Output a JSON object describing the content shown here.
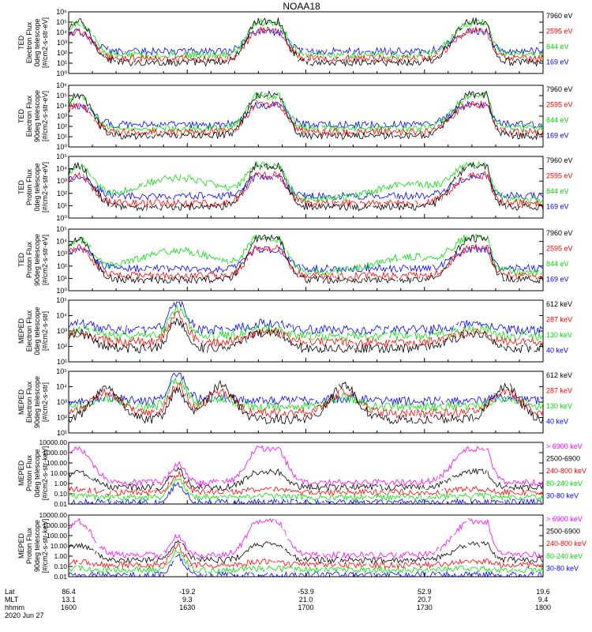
{
  "title": "NOAA18",
  "colors": {
    "black": "#000000",
    "blue": "#0000ff",
    "red": "#ff0000",
    "green": "#00e000",
    "magenta": "#ff00ff"
  },
  "chart_data": [
    {
      "type": "line",
      "panel": "ted-electron-0deg",
      "ylabel": [
        "TED",
        "Electron Flux",
        "0deg telescope",
        "[#/cm2-s-str-eV]"
      ],
      "yscale": "log",
      "ylim": [
        1,
        1000000
      ],
      "yticks": [
        "10⁰",
        "10¹",
        "10²",
        "10³",
        "10⁴",
        "10⁵",
        "10⁶"
      ],
      "legend": [
        {
          "label": "7960 eV",
          "color": "black"
        },
        {
          "label": "2595 eV",
          "color": "red"
        },
        {
          "label": "844 eV",
          "color": "green"
        },
        {
          "label": "169 eV",
          "color": "blue"
        }
      ]
    },
    {
      "type": "line",
      "panel": "ted-electron-90deg",
      "ylabel": [
        "TED",
        "Electron Flux",
        "90deg telescope",
        "[#/cm2-s-str-eV]"
      ],
      "yscale": "log",
      "ylim": [
        1,
        1000000
      ],
      "yticks": [
        "10⁰",
        "10¹",
        "10²",
        "10³",
        "10⁴",
        "10⁵",
        "10⁶"
      ],
      "legend": [
        {
          "label": "7960 eV",
          "color": "black"
        },
        {
          "label": "2595 eV",
          "color": "red"
        },
        {
          "label": "844 eV",
          "color": "green"
        },
        {
          "label": "169 eV",
          "color": "blue"
        }
      ]
    },
    {
      "type": "line",
      "panel": "ted-proton-0deg",
      "ylabel": [
        "TED",
        "Proton Flux",
        "0deg telescope",
        "[#/cm2-s-str-eV]"
      ],
      "yscale": "log",
      "ylim": [
        1,
        100000
      ],
      "yticks": [
        "10⁰",
        "10¹",
        "10²",
        "10³",
        "10⁴",
        "10⁵"
      ],
      "legend": [
        {
          "label": "7960 eV",
          "color": "black"
        },
        {
          "label": "2595 eV",
          "color": "red"
        },
        {
          "label": "844 eV",
          "color": "green"
        },
        {
          "label": "169 eV",
          "color": "blue"
        }
      ]
    },
    {
      "type": "line",
      "panel": "ted-proton-90deg",
      "ylabel": [
        "TED",
        "Proton Flux",
        "90deg telescope",
        "[#/cm2-s-str-eV]"
      ],
      "yscale": "log",
      "ylim": [
        1,
        100000
      ],
      "yticks": [
        "10⁰",
        "10¹",
        "10²",
        "10³",
        "10⁴",
        "10⁵"
      ],
      "legend": [
        {
          "label": "7960 eV",
          "color": "black"
        },
        {
          "label": "2595 eV",
          "color": "red"
        },
        {
          "label": "844 eV",
          "color": "green"
        },
        {
          "label": "169 eV",
          "color": "blue"
        }
      ]
    },
    {
      "type": "line",
      "panel": "meped-electron-0deg",
      "ylabel": [
        "MEPED",
        "Electron Flux",
        "0deg telescope",
        "[#/cm2-s-str]"
      ],
      "yscale": "log",
      "ylim": [
        10,
        100000
      ],
      "yticks": [
        "10¹",
        "10²",
        "10³",
        "10⁴",
        "10⁵"
      ],
      "legend": [
        {
          "label": "612 keV",
          "color": "black"
        },
        {
          "label": "287 keV",
          "color": "red"
        },
        {
          "label": "130 keV",
          "color": "green"
        },
        {
          "label": "40 keV",
          "color": "blue"
        }
      ]
    },
    {
      "type": "line",
      "panel": "meped-electron-90deg",
      "ylabel": [
        "MEPED",
        "Electron Flux",
        "90deg telescope",
        "[#/cm2-s-str]"
      ],
      "yscale": "log",
      "ylim": [
        10,
        100000
      ],
      "yticks": [
        "10¹",
        "10²",
        "10³",
        "10⁴",
        "10⁵"
      ],
      "legend": [
        {
          "label": "612 keV",
          "color": "black"
        },
        {
          "label": "287 keV",
          "color": "red"
        },
        {
          "label": "130 keV",
          "color": "green"
        },
        {
          "label": "40 keV",
          "color": "blue"
        }
      ]
    },
    {
      "type": "line",
      "panel": "meped-proton-0deg",
      "ylabel": [
        "MEPED",
        "Proton Flux",
        "0deg telescope",
        "[#/cm2-s-str-keV]"
      ],
      "yscale": "log",
      "ylim": [
        0.01,
        10000
      ],
      "yticks": [
        "0.01",
        "0.10",
        "1.00",
        "10.00",
        "100.00",
        "1000.00",
        "10000.00"
      ],
      "legend": [
        {
          "label": "> 6900 keV",
          "color": "magenta"
        },
        {
          "label": "2500-6900",
          "color": "black"
        },
        {
          "label": "240-800 keV",
          "color": "red"
        },
        {
          "label": "80-240 keV",
          "color": "green"
        },
        {
          "label": "30-80 keV",
          "color": "blue"
        }
      ]
    },
    {
      "type": "line",
      "panel": "meped-proton-90deg",
      "ylabel": [
        "MEPED",
        "Proton Flux",
        "90deg telescope",
        "[#/cm2-s-str-keV]"
      ],
      "yscale": "log",
      "ylim": [
        0.01,
        10000
      ],
      "yticks": [
        "0.01",
        "0.10",
        "1.00",
        "10.00",
        "100.00",
        "1000.00",
        "10000.00"
      ],
      "legend": [
        {
          "label": "> 6900 keV",
          "color": "magenta"
        },
        {
          "label": "2500-6900",
          "color": "black"
        },
        {
          "label": "240-800 keV",
          "color": "red"
        },
        {
          "label": "80-240 keV",
          "color": "green"
        },
        {
          "label": "30-80 keV",
          "color": "blue"
        }
      ]
    }
  ],
  "x_axis": {
    "row_labels": [
      "Lat",
      "MLT",
      "hhmm"
    ],
    "ticks": [
      {
        "lat": "86.4",
        "mlt": "13.1",
        "hhmm": "1600"
      },
      {
        "lat": "-19.2",
        "mlt": "9.3",
        "hhmm": "1630"
      },
      {
        "lat": "-53.9",
        "mlt": "21.0",
        "hhmm": "1700"
      },
      {
        "lat": "52.9",
        "mlt": "20.7",
        "hhmm": "1730"
      },
      {
        "lat": "19.6",
        "mlt": "9.4",
        "hhmm": "1800"
      }
    ],
    "date": "2020 Jun 27"
  }
}
